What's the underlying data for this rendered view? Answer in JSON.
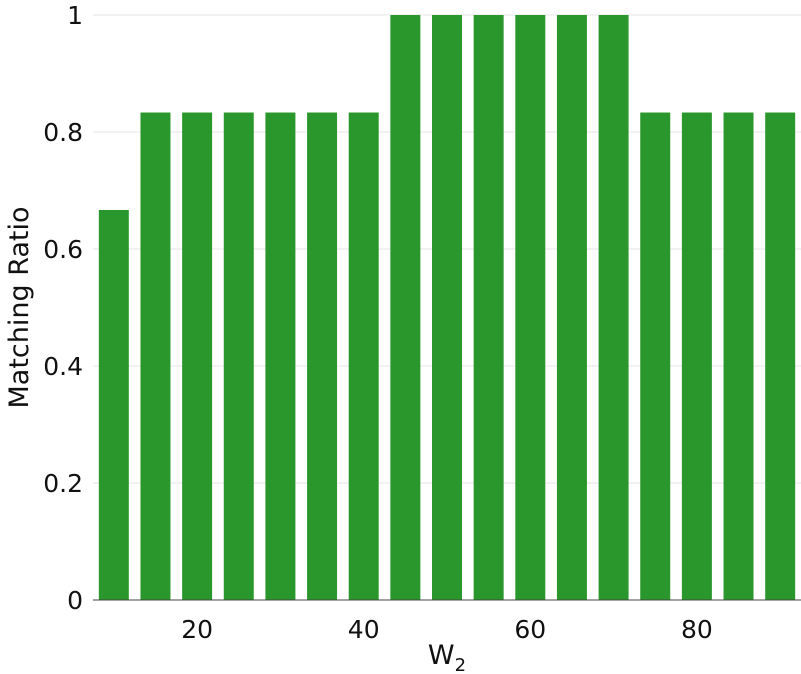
{
  "chart_data": {
    "type": "bar",
    "x": [
      10,
      15,
      20,
      25,
      30,
      35,
      40,
      45,
      50,
      55,
      60,
      65,
      70,
      75,
      80,
      85,
      90
    ],
    "values": [
      0.6667,
      0.8333,
      0.8333,
      0.8333,
      0.8333,
      0.8333,
      0.8333,
      1,
      1,
      1,
      1,
      1,
      1,
      0.8333,
      0.8333,
      0.8333,
      0.8333
    ],
    "xlabel": "W",
    "xlabel_subscript": "2",
    "ylabel": "Matching Ratio",
    "x_ticks": [
      20,
      40,
      60,
      80
    ],
    "y_ticks": [
      0,
      0.2,
      0.4,
      0.6,
      0.8,
      1
    ],
    "ylim": [
      0,
      1
    ],
    "xlim": [
      7.5,
      92.5
    ],
    "grid": "horizontal",
    "colors": {
      "bar": "#2a972c"
    }
  }
}
